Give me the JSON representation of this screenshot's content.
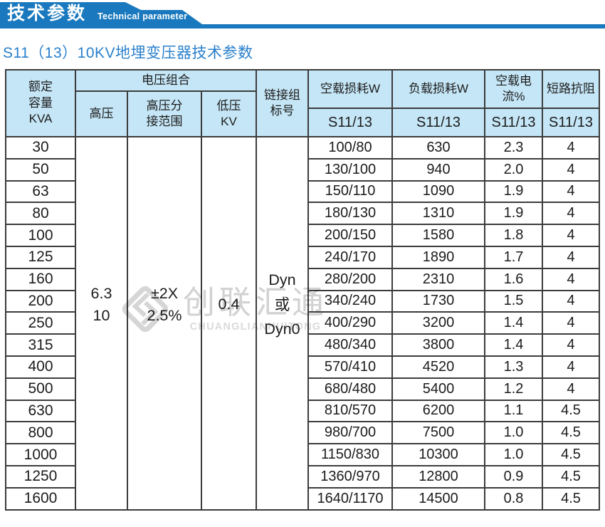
{
  "banner": {
    "title_cn": "技术参数",
    "title_en": "Technical parameter",
    "color": "#1a79be"
  },
  "subtitle": "S11（13）10KV地埋变压器技术参数",
  "watermark": {
    "logo_icon": "diamond-swirl-logo",
    "name_cn": "创联汇通",
    "name_en": "CHUANGLIANHUITONG"
  },
  "table": {
    "header": {
      "rated_capacity": "额定\n容量\nKVA",
      "voltage_group": "电压组合",
      "high_voltage": "高压",
      "hv_tap_range": "高压分\n接范围",
      "low_voltage": "低压\nKV",
      "vector_group": "链接组\n标号",
      "no_load_loss": "空载损耗W",
      "load_loss": "负载损耗W",
      "no_load_current": "空载电流%",
      "impedance": "短路抗阻",
      "model_label": "S11/13"
    },
    "merged": {
      "high_voltage": "6.3\n10",
      "hv_tap_range": "±2X\n2.5%",
      "low_voltage": "0.4",
      "vector_group": "Dyn\n或\nDyn0"
    },
    "rows": [
      {
        "kva": "30",
        "no_load_loss": "100/80",
        "load_loss": "630",
        "no_load_current": "2.3",
        "impedance": "4"
      },
      {
        "kva": "50",
        "no_load_loss": "130/100",
        "load_loss": "940",
        "no_load_current": "2.0",
        "impedance": "4"
      },
      {
        "kva": "63",
        "no_load_loss": "150/110",
        "load_loss": "1090",
        "no_load_current": "1.9",
        "impedance": "4"
      },
      {
        "kva": "80",
        "no_load_loss": "180/130",
        "load_loss": "1310",
        "no_load_current": "1.9",
        "impedance": "4"
      },
      {
        "kva": "100",
        "no_load_loss": "200/150",
        "load_loss": "1580",
        "no_load_current": "1.8",
        "impedance": "4"
      },
      {
        "kva": "125",
        "no_load_loss": "240/170",
        "load_loss": "1890",
        "no_load_current": "1.7",
        "impedance": "4"
      },
      {
        "kva": "160",
        "no_load_loss": "280/200",
        "load_loss": "2310",
        "no_load_current": "1.6",
        "impedance": "4"
      },
      {
        "kva": "200",
        "no_load_loss": "340/240",
        "load_loss": "1730",
        "no_load_current": "1.5",
        "impedance": "4"
      },
      {
        "kva": "250",
        "no_load_loss": "400/290",
        "load_loss": "3200",
        "no_load_current": "1.4",
        "impedance": "4"
      },
      {
        "kva": "315",
        "no_load_loss": "480/340",
        "load_loss": "3800",
        "no_load_current": "1.4",
        "impedance": "4"
      },
      {
        "kva": "400",
        "no_load_loss": "570/410",
        "load_loss": "4520",
        "no_load_current": "1.3",
        "impedance": "4"
      },
      {
        "kva": "500",
        "no_load_loss": "680/480",
        "load_loss": "5400",
        "no_load_current": "1.2",
        "impedance": "4"
      },
      {
        "kva": "630",
        "no_load_loss": "810/570",
        "load_loss": "6200",
        "no_load_current": "1.1",
        "impedance": "4.5"
      },
      {
        "kva": "800",
        "no_load_loss": "980/700",
        "load_loss": "7500",
        "no_load_current": "1.0",
        "impedance": "4.5"
      },
      {
        "kva": "1000",
        "no_load_loss": "1150/830",
        "load_loss": "10300",
        "no_load_current": "1.0",
        "impedance": "4.5"
      },
      {
        "kva": "1250",
        "no_load_loss": "1360/970",
        "load_loss": "12800",
        "no_load_current": "0.9",
        "impedance": "4.5"
      },
      {
        "kva": "1600",
        "no_load_loss": "1640/1170",
        "load_loss": "14500",
        "no_load_current": "0.8",
        "impedance": "4.5"
      }
    ]
  },
  "colors": {
    "banner_blue": "#1a79be",
    "subtitle_blue": "#2a80cc",
    "header_bg": "#c5e6f6",
    "grid_line": "#3c3c3c",
    "watermark_gray": "#d5d5d5"
  }
}
